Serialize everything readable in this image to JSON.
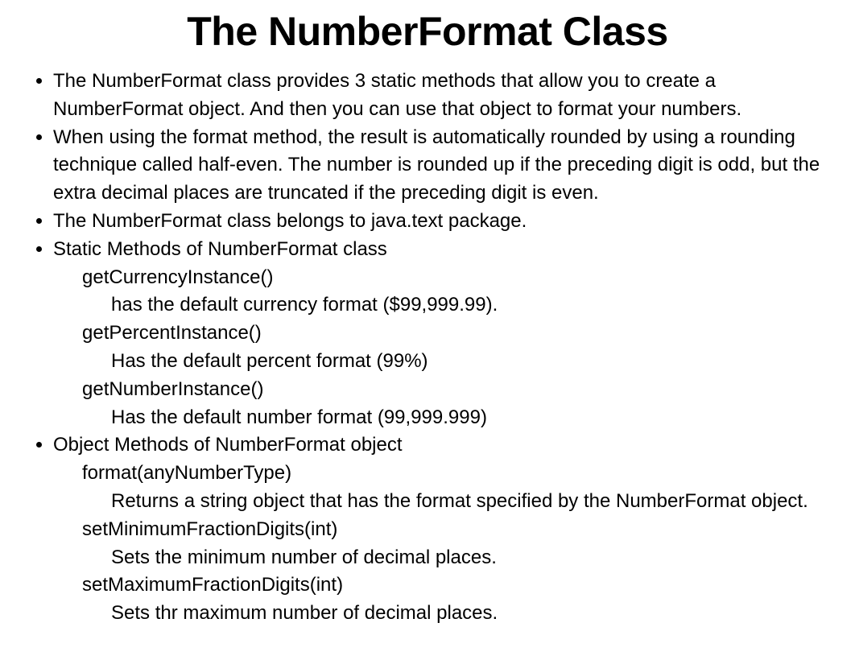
{
  "title": "The NumberFormat Class",
  "b1": "The NumberFormat class provides 3 static methods that allow you to create a NumberFormat object. And then you can use that object to format your numbers.",
  "b2": "When using the format method, the result is automatically rounded by using a rounding technique called half-even. The number is rounded up if the preceding digit is odd, but the extra decimal places are truncated if the preceding digit is even.",
  "b3": "The NumberFormat class belongs to java.text package.",
  "b4": "Static Methods of NumberFormat class",
  "b4_1": "getCurrencyInstance()",
  "b4_1_1": "has the default currency format ($99,999.99).",
  "b4_2": "getPercentInstance()",
  "b4_2_1": "Has the default percent format (99%)",
  "b4_3": "getNumberInstance()",
  "b4_3_1": "Has the default number format (99,999.999)",
  "b5": "Object Methods of NumberFormat object",
  "b5_1": "format(anyNumberType)",
  "b5_1_1": "Returns a string object that has the format specified by the NumberFormat object.",
  "b5_2": "setMinimumFractionDigits(int)",
  "b5_2_1": "Sets the minimum number of decimal places.",
  "b5_3": "setMaximumFractionDigits(int)",
  "b5_3_1": "Sets thr maximum number of decimal places."
}
